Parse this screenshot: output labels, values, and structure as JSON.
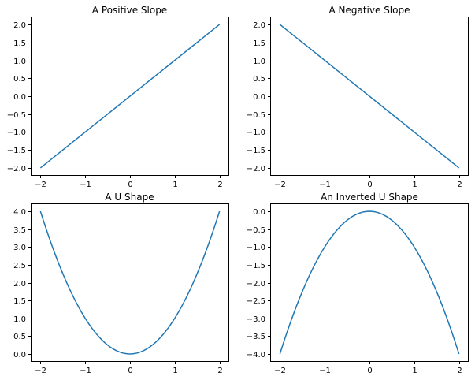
{
  "colors": {
    "series": "#1f77b4"
  },
  "chart_data": [
    {
      "type": "line",
      "title": "A Positive Slope",
      "xlabel": "",
      "ylabel": "",
      "function": "linear",
      "series": [
        {
          "x": [
            -2,
            2
          ],
          "y": [
            -2,
            2
          ]
        }
      ],
      "xlim": [
        -2.2,
        2.2
      ],
      "ylim": [
        -2.2,
        2.2
      ],
      "xticks": [
        -2,
        -1,
        0,
        1,
        2
      ],
      "xtick_labels": [
        "−2",
        "−1",
        "0",
        "1",
        "2"
      ],
      "yticks": [
        -2.0,
        -1.5,
        -1.0,
        -0.5,
        0.0,
        0.5,
        1.0,
        1.5,
        2.0
      ],
      "ytick_labels": [
        "−2.0",
        "−1.5",
        "−1.0",
        "−0.5",
        "0.0",
        "0.5",
        "1.0",
        "1.5",
        "2.0"
      ],
      "grid": false
    },
    {
      "type": "line",
      "title": "A Negative Slope",
      "xlabel": "",
      "ylabel": "",
      "function": "linear",
      "series": [
        {
          "x": [
            -2,
            2
          ],
          "y": [
            2,
            -2
          ]
        }
      ],
      "xlim": [
        -2.2,
        2.2
      ],
      "ylim": [
        -2.2,
        2.2
      ],
      "xticks": [
        -2,
        -1,
        0,
        1,
        2
      ],
      "xtick_labels": [
        "−2",
        "−1",
        "0",
        "1",
        "2"
      ],
      "yticks": [
        -2.0,
        -1.5,
        -1.0,
        -0.5,
        0.0,
        0.5,
        1.0,
        1.5,
        2.0
      ],
      "ytick_labels": [
        "−2.0",
        "−1.5",
        "−1.0",
        "−0.5",
        "0.0",
        "0.5",
        "1.0",
        "1.5",
        "2.0"
      ],
      "grid": false
    },
    {
      "type": "line",
      "title": "A U Shape",
      "xlabel": "",
      "ylabel": "",
      "function": "quadratic",
      "series": [
        {
          "x": [
            -2,
            -1,
            0,
            1,
            2
          ],
          "y": [
            4,
            1,
            0,
            1,
            4
          ]
        }
      ],
      "xlim": [
        -2.2,
        2.2
      ],
      "ylim": [
        -0.2,
        4.2
      ],
      "xticks": [
        -2,
        -1,
        0,
        1,
        2
      ],
      "xtick_labels": [
        "−2",
        "−1",
        "0",
        "1",
        "2"
      ],
      "yticks": [
        0.0,
        0.5,
        1.0,
        1.5,
        2.0,
        2.5,
        3.0,
        3.5,
        4.0
      ],
      "ytick_labels": [
        "0.0",
        "0.5",
        "1.0",
        "1.5",
        "2.0",
        "2.5",
        "3.0",
        "3.5",
        "4.0"
      ],
      "grid": false
    },
    {
      "type": "line",
      "title": "An Inverted U Shape",
      "xlabel": "",
      "ylabel": "",
      "function": "quadratic",
      "series": [
        {
          "x": [
            -2,
            -1,
            0,
            1,
            2
          ],
          "y": [
            -4,
            -1,
            0,
            -1,
            -4
          ]
        }
      ],
      "xlim": [
        -2.2,
        2.2
      ],
      "ylim": [
        -4.2,
        0.2
      ],
      "xticks": [
        -2,
        -1,
        0,
        1,
        2
      ],
      "xtick_labels": [
        "−2",
        "−1",
        "0",
        "1",
        "2"
      ],
      "yticks": [
        -4.0,
        -3.5,
        -3.0,
        -2.5,
        -2.0,
        -1.5,
        -1.0,
        -0.5,
        0.0
      ],
      "ytick_labels": [
        "−4.0",
        "−3.5",
        "−3.0",
        "−2.5",
        "−2.0",
        "−1.5",
        "−1.0",
        "−0.5",
        "0.0"
      ],
      "grid": false
    }
  ]
}
